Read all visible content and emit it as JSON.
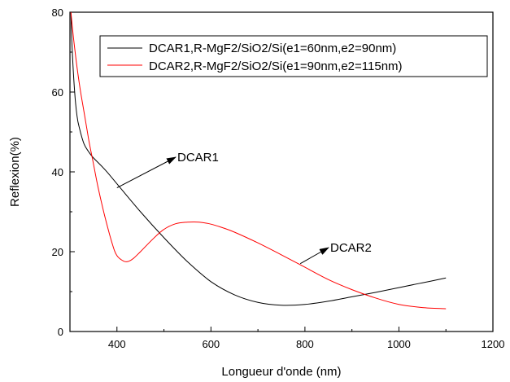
{
  "chart_data": {
    "type": "line",
    "xlabel": "Longueur d'onde (nm)",
    "ylabel": "Reflexion(%)",
    "xlim": [
      300,
      1200
    ],
    "ylim": [
      0,
      80
    ],
    "xticks": [
      400,
      600,
      800,
      1000,
      1200
    ],
    "yticks": [
      0,
      20,
      40,
      60,
      80
    ],
    "grid": false,
    "legend_position": "top-right",
    "series": [
      {
        "name": "DCAR1,R-MgF2/SiO2/Si(e1=60nm,e2=90nm)",
        "color": "#000000",
        "x": [
          302,
          305,
          310,
          315,
          320,
          330,
          340,
          350,
          375,
          400,
          450,
          500,
          550,
          600,
          650,
          700,
          750,
          800,
          850,
          900,
          950,
          1000,
          1050,
          1100
        ],
        "y": [
          80,
          70,
          60,
          54,
          51,
          47,
          45,
          43.5,
          40.5,
          37,
          30,
          23.5,
          17.5,
          12.5,
          9.2,
          7.3,
          6.6,
          6.8,
          7.6,
          8.7,
          9.8,
          11,
          12.2,
          13.4
        ]
      },
      {
        "name": "DCAR2,R-MgF2/SiO2/Si(e1=90nm,e2=115nm)",
        "color": "#ff0000",
        "x": [
          302,
          310,
          320,
          330,
          340,
          350,
          360,
          375,
          390,
          400,
          415,
          425,
          435,
          450,
          475,
          500,
          525,
          550,
          575,
          600,
          625,
          650,
          700,
          750,
          800,
          850,
          900,
          950,
          1000,
          1050,
          1100
        ],
        "y": [
          80,
          71,
          62,
          55,
          48,
          42,
          36,
          28.5,
          22,
          19,
          17.6,
          17.6,
          18.3,
          20,
          23,
          25.6,
          27,
          27.4,
          27.4,
          26.9,
          26,
          24.9,
          22.2,
          19.2,
          16.1,
          13,
          10.5,
          8.4,
          6.8,
          6,
          5.7
        ]
      }
    ],
    "annotations": [
      {
        "text": "DCAR1",
        "points_to": [
          400,
          36
        ]
      },
      {
        "text": "DCAR2",
        "points_to": [
          790,
          17
        ]
      }
    ]
  }
}
